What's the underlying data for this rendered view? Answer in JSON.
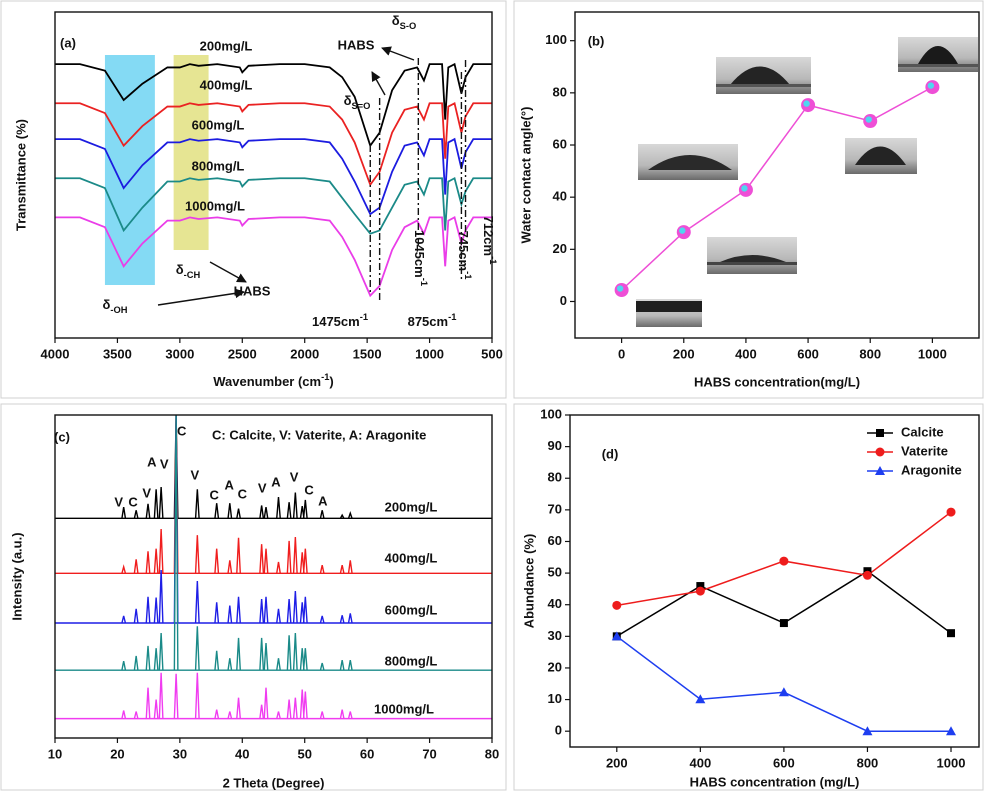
{
  "chart_data": [
    {
      "type": "line",
      "annotations": [
        "(a)",
        "HABS",
        {
          "text": "δ",
          "sub": "S-O"
        },
        {
          "text": "δ",
          "sub": "S=O"
        },
        {
          "text": "δ",
          "sub": "-CH"
        },
        "HABS",
        {
          "text": "δ",
          "sub": "-OH"
        },
        {
          "text": "1475cm",
          "sup": "-1"
        },
        {
          "text": "1045cm",
          "sup": "-1"
        },
        {
          "text": "745cm",
          "sup": "-1"
        },
        {
          "text": "875cm",
          "sup": "-1"
        },
        {
          "text": "712cm",
          "sup": "-1"
        }
      ],
      "x_label": {
        "text": "Wavenumber (cm",
        "sup": "-1",
        "tail": ")"
      },
      "y_label": "Transmittance (%)",
      "x": [
        4000,
        3800,
        3600,
        3450,
        3300,
        3100,
        3000,
        2920,
        2850,
        2700,
        2520,
        2500,
        2450,
        2200,
        2000,
        1800,
        1700,
        1600,
        1475,
        1400,
        1300,
        1200,
        1100,
        1045,
        1000,
        900,
        875,
        850,
        800,
        745,
        712,
        650,
        500
      ],
      "series": [
        {
          "name": "200mg/L",
          "color": "#000000",
          "label_color": "#000000",
          "values": [
            84,
            84,
            82,
            73,
            78,
            83,
            83,
            84,
            83.5,
            84,
            83,
            81.5,
            83.5,
            84,
            84,
            83,
            80,
            74,
            59,
            63,
            76,
            82,
            83,
            79,
            84,
            84,
            67,
            83,
            84,
            75,
            80,
            84,
            84
          ]
        },
        {
          "name": "400mg/L",
          "color": "#ea2222",
          "label_color": "#ea2222",
          "values": [
            72,
            72,
            69,
            59,
            65,
            71,
            71,
            72,
            71.5,
            72,
            71,
            69.5,
            71.5,
            72,
            72,
            71,
            67,
            60,
            47,
            51,
            63,
            70,
            71,
            67,
            72,
            72,
            55,
            71,
            72,
            63,
            68,
            72,
            72
          ]
        },
        {
          "name": "600mg/L",
          "color": "#1c1ce0",
          "label_color": "#1c1ce0",
          "values": [
            61,
            61,
            58,
            46,
            53,
            60,
            60,
            61,
            60.5,
            61,
            60,
            58.5,
            60.5,
            61,
            61,
            60,
            55,
            48,
            38,
            40,
            51,
            59,
            60,
            56,
            61,
            61,
            44,
            60,
            61,
            52,
            57,
            61,
            61
          ]
        },
        {
          "name": "800mg/L",
          "color": "#1b8a88",
          "label_color": "#1f8a1f",
          "values": [
            49,
            49,
            46,
            33,
            40,
            48,
            48,
            49,
            48.5,
            49,
            48,
            46.5,
            48.5,
            49,
            49,
            48,
            43,
            38,
            32,
            33,
            40,
            47,
            48,
            44,
            49,
            49,
            33,
            48,
            49,
            41,
            45,
            49,
            49
          ]
        },
        {
          "name": "1000mg/L",
          "color": "#ea3de8",
          "label_color": "#ea3de8",
          "values": [
            37,
            37,
            34,
            22,
            29,
            36,
            36,
            37,
            36.5,
            37,
            36,
            34.5,
            36.5,
            37,
            37,
            36,
            31,
            24,
            13,
            16,
            27,
            34,
            36,
            32,
            37,
            37,
            22,
            36,
            37,
            29,
            33,
            37,
            37
          ]
        }
      ],
      "bands": [
        {
          "from": 3600,
          "to": 3200,
          "color": "#6fd4f2"
        },
        {
          "from": 3050,
          "to": 2770,
          "color": "#e2e080"
        }
      ],
      "vlines": [
        1475,
        1400,
        1090,
        745,
        712
      ],
      "xlim": [
        4000,
        500
      ],
      "xticks": [
        4000,
        3500,
        3000,
        2500,
        2000,
        1500,
        1000,
        500
      ],
      "ylim": [
        0,
        100
      ]
    },
    {
      "type": "line",
      "annotations": [
        "(b)"
      ],
      "x_label": "HABS concentration(mg/L)",
      "y_label": "Water contact angle(°)",
      "x": [
        0,
        200,
        400,
        600,
        800,
        1000
      ],
      "series": [
        {
          "color": "#ee4fd6",
          "marker": "circle",
          "values": [
            4.4,
            26.6,
            42.8,
            75.3,
            69.2,
            82.2
          ]
        }
      ],
      "xlim": [
        -150,
        1150
      ],
      "xticks": [
        0,
        200,
        400,
        600,
        800,
        1000
      ],
      "ylim": [
        -14,
        111
      ],
      "yticks": [
        0,
        20,
        40,
        60,
        80,
        100
      ]
    },
    {
      "type": "peaks",
      "annotations": [
        "(c)",
        "C: Calcite,  V: Vaterite,  A: Aragonite"
      ],
      "peak_labels": [
        {
          "x": 20.2,
          "label": "V"
        },
        {
          "x": 22.5,
          "label": "C"
        },
        {
          "x": 24.7,
          "label": "V"
        },
        {
          "x": 25.5,
          "label": "A"
        },
        {
          "x": 27.5,
          "label": "V"
        },
        {
          "x": 30.3,
          "label": "C"
        },
        {
          "x": 32.4,
          "label": "V"
        },
        {
          "x": 35.5,
          "label": "C"
        },
        {
          "x": 37.9,
          "label": "A"
        },
        {
          "x": 40.0,
          "label": "C"
        },
        {
          "x": 43.2,
          "label": "V"
        },
        {
          "x": 45.4,
          "label": "A"
        },
        {
          "x": 48.3,
          "label": "V"
        },
        {
          "x": 50.7,
          "label": "C"
        },
        {
          "x": 52.9,
          "label": "A"
        }
      ],
      "x_label": "2 Theta (Degree)",
      "y_label": "Intensity (a.u.)",
      "peaks_x": [
        21.0,
        23.0,
        24.9,
        26.2,
        27.0,
        29.4,
        32.8,
        35.9,
        38.0,
        39.4,
        43.1,
        43.8,
        45.8,
        47.5,
        48.5,
        49.6,
        50.1,
        52.8,
        56.0,
        57.3
      ],
      "series": [
        {
          "name": "200mg/L",
          "color": "#000000",
          "label_color": "#000000",
          "baseline": 68,
          "values": [
            71.5,
            70.5,
            72.5,
            77,
            77.7,
            100,
            77,
            72.7,
            72.7,
            71,
            72,
            71.5,
            74.6,
            73,
            76,
            71.8,
            73.7,
            70.5,
            69,
            69.6
          ]
        },
        {
          "name": "400mg/L",
          "color": "#f01e1e",
          "label_color": "#f01e1e",
          "baseline": 51,
          "values": [
            53,
            55.3,
            57.8,
            58.6,
            64.7,
            100,
            62.8,
            58.6,
            55,
            62,
            60,
            58.6,
            54.5,
            61,
            62.2,
            57.5,
            58.6,
            53.5,
            53.5,
            55
          ]
        },
        {
          "name": "600mg/L",
          "color": "#1e1ee6",
          "label_color": "#1e1ee6",
          "baseline": 35.6,
          "values": [
            37.8,
            40,
            43.7,
            43.5,
            52,
            100,
            48.6,
            42,
            41,
            43.7,
            43,
            43.7,
            40,
            43,
            45.5,
            42,
            43.7,
            37.8,
            38,
            38.6
          ]
        },
        {
          "name": "800mg/L",
          "color": "#1a8a88",
          "label_color": "#1f8a1f",
          "baseline": 21,
          "values": [
            23.8,
            25.4,
            28.5,
            27.8,
            32.5,
            100,
            34.6,
            27,
            24.7,
            31,
            31,
            29.4,
            24.7,
            31.8,
            32.5,
            27.8,
            27.8,
            23.2,
            24.1,
            24.1
          ]
        },
        {
          "name": "1000mg/L",
          "color": "#f03cf0",
          "label_color": "#f03cf0",
          "baseline": 6,
          "values": [
            8.5,
            8.2,
            15.6,
            11.9,
            20.2,
            19.9,
            20.2,
            8.8,
            8.2,
            12.5,
            10.3,
            15.6,
            8.2,
            11.9,
            12.5,
            15,
            14.4,
            8.2,
            8.8,
            8.2
          ]
        }
      ],
      "xlim": [
        10,
        80
      ],
      "xticks": [
        10,
        20,
        30,
        40,
        50,
        60,
        70,
        80
      ],
      "ylim": [
        0,
        100
      ]
    },
    {
      "type": "line",
      "annotations": [
        "(d)"
      ],
      "x_label": "HABS concentration (mg/L)",
      "y_label": "Abundance (%)",
      "x": [
        200,
        400,
        600,
        800,
        1000
      ],
      "series": [
        {
          "name": "Calcite",
          "color": "#000000",
          "marker": "square",
          "values": [
            30.0,
            45.9,
            34.2,
            50.6,
            31.0
          ]
        },
        {
          "name": "Vaterite",
          "color": "#ee1c1c",
          "marker": "circle",
          "values": [
            39.8,
            44.3,
            53.8,
            49.3,
            69.3
          ]
        },
        {
          "name": "Aragonite",
          "color": "#1e3ef0",
          "marker": "triangle",
          "values": [
            30.0,
            10.1,
            12.3,
            0,
            0
          ]
        }
      ],
      "legend": "upper right",
      "xlim": [
        88,
        1067
      ],
      "xticks": [
        200,
        400,
        600,
        800,
        1000
      ],
      "ylim": [
        -5,
        100
      ],
      "yticks": [
        0,
        10,
        20,
        30,
        40,
        50,
        60,
        70,
        80,
        90,
        100
      ]
    }
  ]
}
